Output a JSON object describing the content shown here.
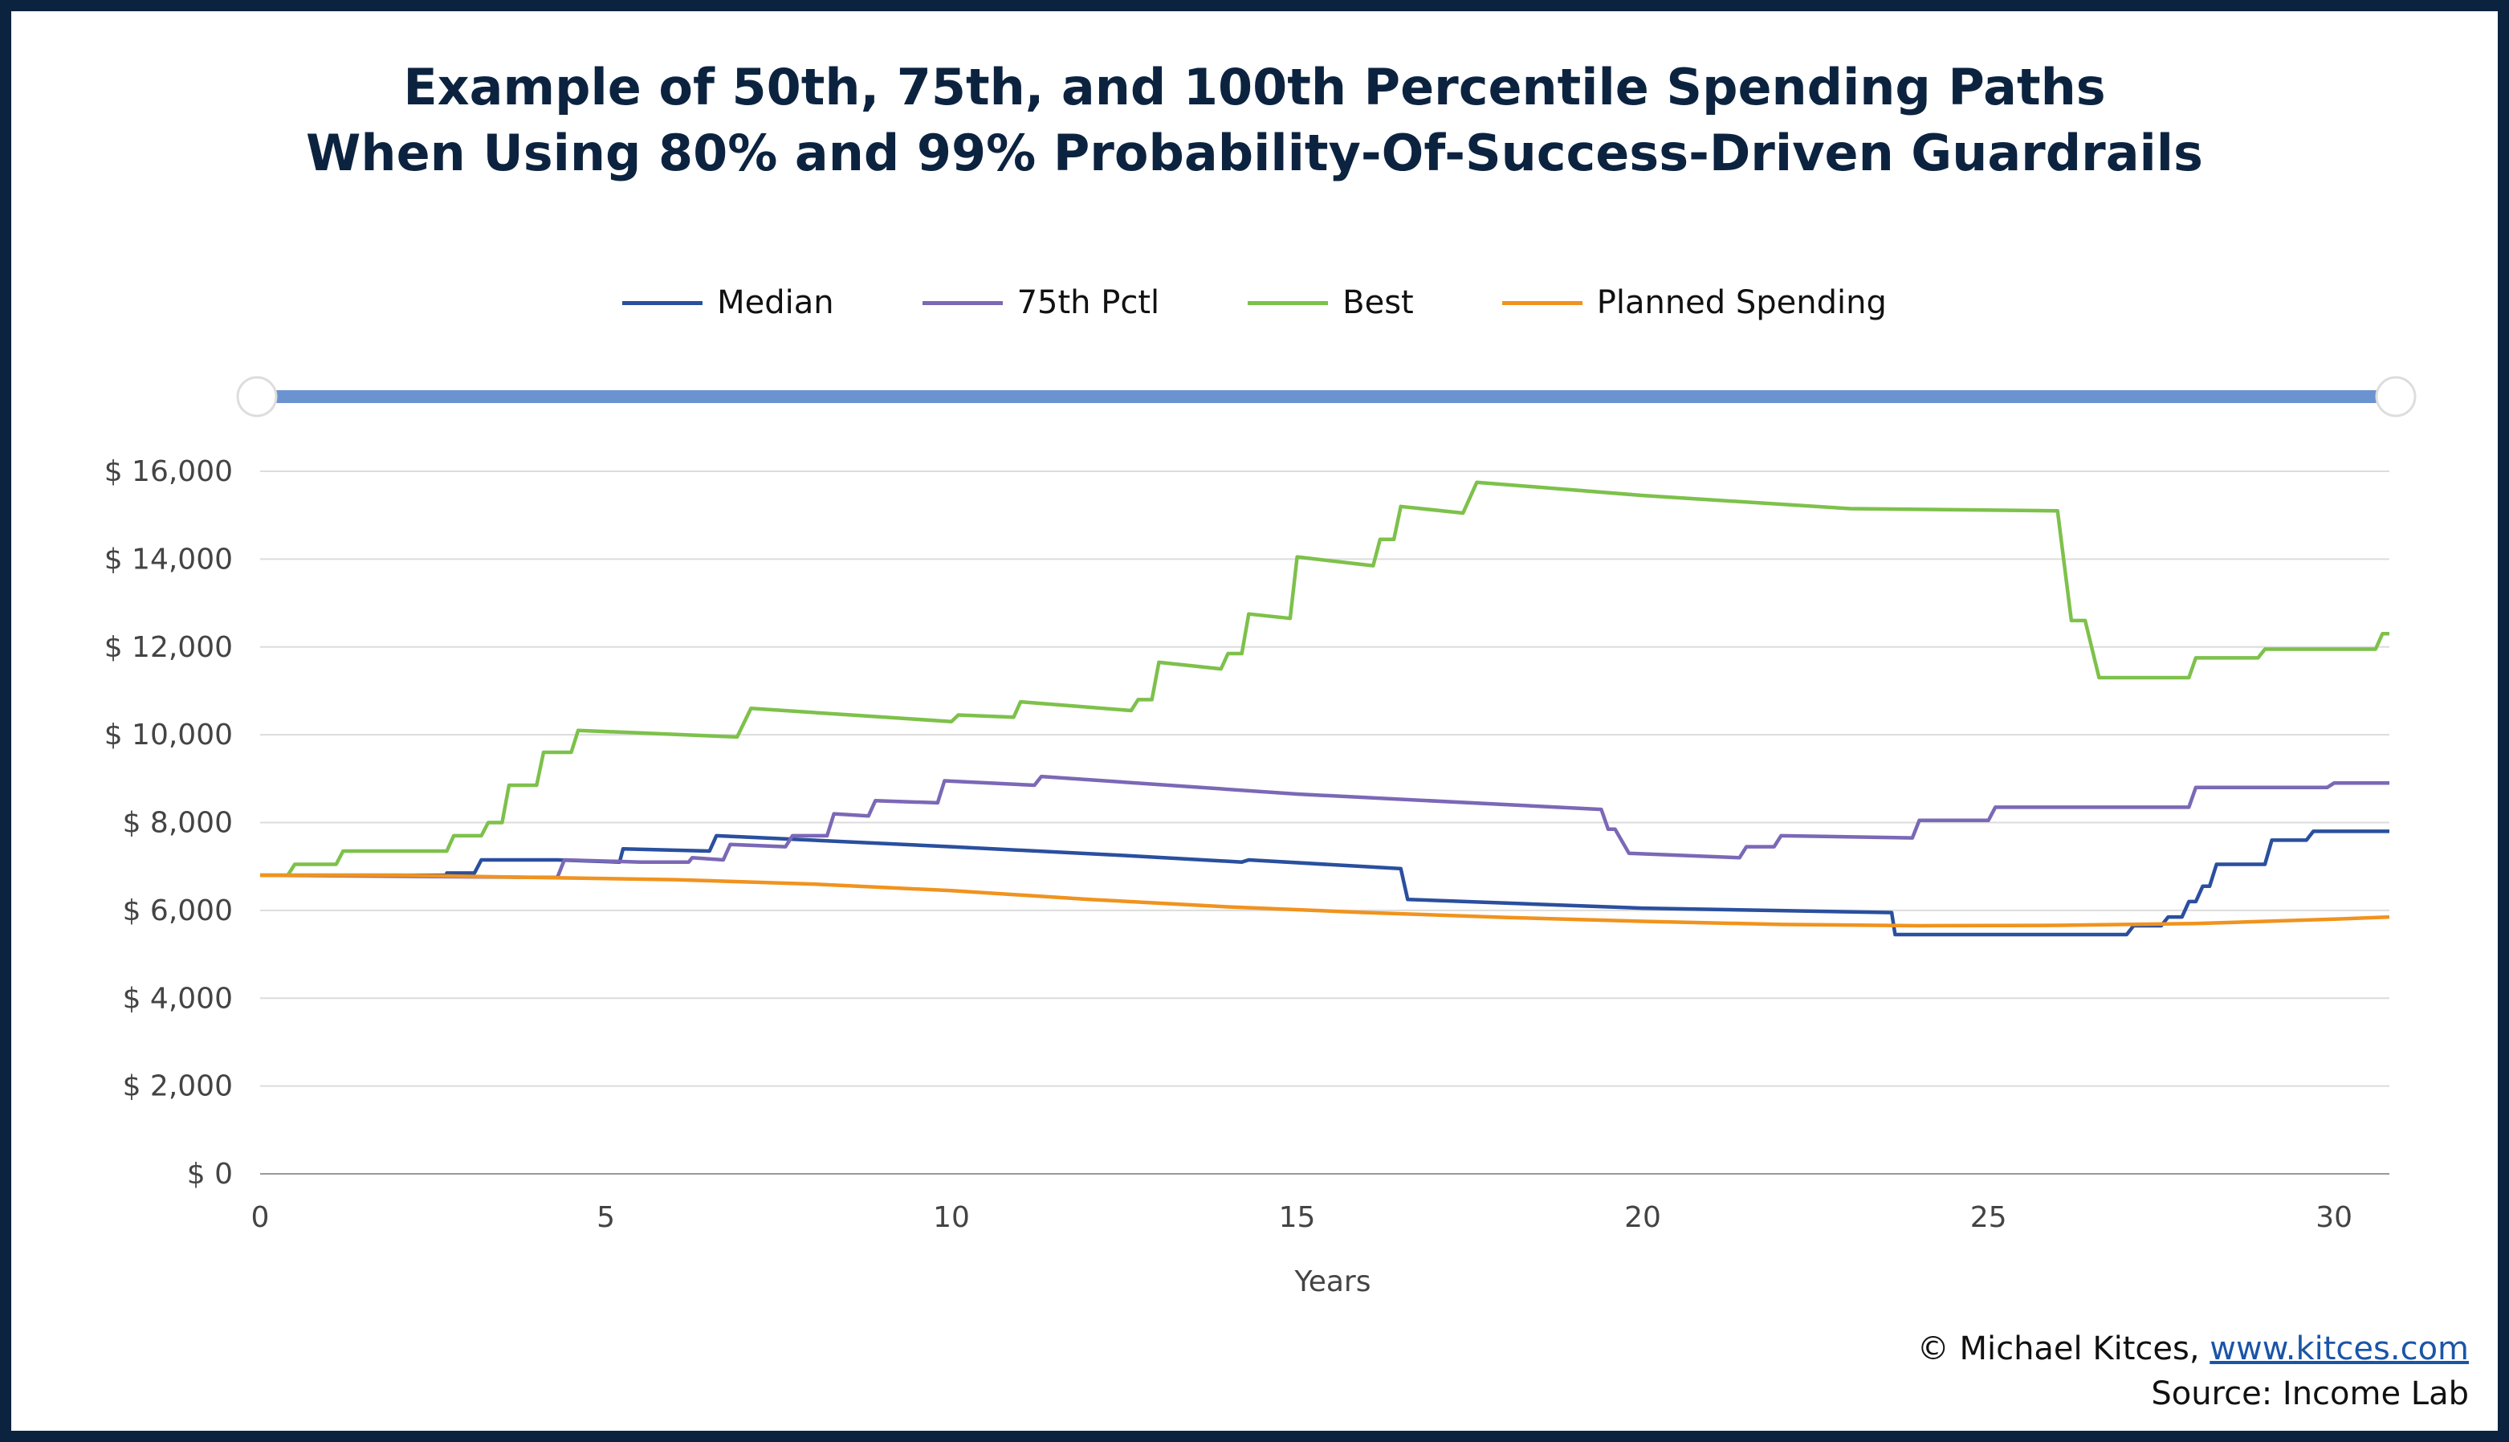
{
  "chart_data": {
    "type": "line",
    "title": "Example of 50th, 75th, and 100th Percentile Spending Paths",
    "subtitle": "When Using 80% and 99% Probability-Of-Success-Driven Guardrails",
    "xlabel": "Years",
    "ylabel": "",
    "xlim": [
      0,
      30.8
    ],
    "ylim": [
      0,
      16000
    ],
    "x_ticks": [
      0,
      5,
      10,
      15,
      20,
      25,
      30
    ],
    "y_ticks": [
      0,
      2000,
      4000,
      6000,
      8000,
      10000,
      12000,
      14000,
      16000
    ],
    "y_tick_labels": [
      "$ 0",
      "$ 2,000",
      "$ 4,000",
      "$ 6,000",
      "$ 8,000",
      "$ 10,000",
      "$ 12,000",
      "$ 14,000",
      "$ 16,000"
    ],
    "legend_position": "top",
    "grid": true,
    "series": [
      {
        "name": "Median",
        "color": "#2a4f9e",
        "points": [
          [
            0,
            6800
          ],
          [
            2.7,
            6800
          ],
          [
            2.7,
            6850
          ],
          [
            3.1,
            6850
          ],
          [
            3.2,
            7150
          ],
          [
            4.3,
            7150
          ],
          [
            5.2,
            7100
          ],
          [
            5.25,
            7400
          ],
          [
            6.5,
            7350
          ],
          [
            6.6,
            7700
          ],
          [
            7.3,
            7650
          ],
          [
            10,
            7450
          ],
          [
            12.5,
            7250
          ],
          [
            14.2,
            7100
          ],
          [
            14.3,
            7150
          ],
          [
            16.5,
            6950
          ],
          [
            16.6,
            6250
          ],
          [
            20,
            6050
          ],
          [
            23.6,
            5950
          ],
          [
            23.65,
            5450
          ],
          [
            27,
            5450
          ],
          [
            27.1,
            5650
          ],
          [
            27.5,
            5650
          ],
          [
            27.6,
            5850
          ],
          [
            27.8,
            5850
          ],
          [
            27.9,
            6200
          ],
          [
            28.0,
            6200
          ],
          [
            28.1,
            6550
          ],
          [
            28.2,
            6550
          ],
          [
            28.3,
            7050
          ],
          [
            29,
            7050
          ],
          [
            29.1,
            7600
          ],
          [
            29.6,
            7600
          ],
          [
            29.7,
            7800
          ],
          [
            30.8,
            7800
          ]
        ]
      },
      {
        "name": "75th Pctl",
        "color": "#7b68b6",
        "points": [
          [
            0,
            6800
          ],
          [
            4.3,
            6750
          ],
          [
            4.4,
            7150
          ],
          [
            5.5,
            7100
          ],
          [
            6.2,
            7100
          ],
          [
            6.25,
            7200
          ],
          [
            6.7,
            7150
          ],
          [
            6.8,
            7500
          ],
          [
            7.6,
            7450
          ],
          [
            7.7,
            7700
          ],
          [
            8.2,
            7700
          ],
          [
            8.3,
            8200
          ],
          [
            8.8,
            8150
          ],
          [
            8.9,
            8500
          ],
          [
            9.8,
            8450
          ],
          [
            9.9,
            8950
          ],
          [
            11.2,
            8850
          ],
          [
            11.3,
            9050
          ],
          [
            15,
            8650
          ],
          [
            19.4,
            8300
          ],
          [
            19.5,
            7850
          ],
          [
            19.6,
            7850
          ],
          [
            19.8,
            7300
          ],
          [
            21.4,
            7200
          ],
          [
            21.5,
            7450
          ],
          [
            21.9,
            7450
          ],
          [
            22,
            7700
          ],
          [
            23.9,
            7650
          ],
          [
            24,
            8050
          ],
          [
            25,
            8050
          ],
          [
            25.1,
            8350
          ],
          [
            27.9,
            8350
          ],
          [
            28,
            8800
          ],
          [
            29.9,
            8800
          ],
          [
            30,
            8900
          ],
          [
            30.8,
            8900
          ]
        ]
      },
      {
        "name": "Best",
        "color": "#7dc14b",
        "points": [
          [
            0,
            6800
          ],
          [
            0.4,
            6800
          ],
          [
            0.5,
            7050
          ],
          [
            1.1,
            7050
          ],
          [
            1.2,
            7350
          ],
          [
            2.7,
            7350
          ],
          [
            2.8,
            7700
          ],
          [
            3.2,
            7700
          ],
          [
            3.3,
            8000
          ],
          [
            3.5,
            8000
          ],
          [
            3.6,
            8850
          ],
          [
            4.0,
            8850
          ],
          [
            4.1,
            9600
          ],
          [
            4.5,
            9600
          ],
          [
            4.6,
            10100
          ],
          [
            6.9,
            9950
          ],
          [
            7.1,
            10600
          ],
          [
            10,
            10300
          ],
          [
            10.1,
            10450
          ],
          [
            10.9,
            10400
          ],
          [
            11,
            10750
          ],
          [
            12.6,
            10550
          ],
          [
            12.7,
            10800
          ],
          [
            12.9,
            10800
          ],
          [
            13,
            11650
          ],
          [
            13.9,
            11500
          ],
          [
            14,
            11850
          ],
          [
            14.2,
            11850
          ],
          [
            14.3,
            12750
          ],
          [
            14.9,
            12650
          ],
          [
            15,
            14050
          ],
          [
            16.1,
            13850
          ],
          [
            16.2,
            14450
          ],
          [
            16.4,
            14450
          ],
          [
            16.5,
            15200
          ],
          [
            17.4,
            15050
          ],
          [
            17.6,
            15750
          ],
          [
            20,
            15450
          ],
          [
            23,
            15150
          ],
          [
            26,
            15100
          ],
          [
            26.2,
            12600
          ],
          [
            26.4,
            12600
          ],
          [
            26.6,
            11300
          ],
          [
            27.9,
            11300
          ],
          [
            28,
            11750
          ],
          [
            28.9,
            11750
          ],
          [
            29,
            11950
          ],
          [
            30.6,
            11950
          ],
          [
            30.7,
            12300
          ],
          [
            30.8,
            12300
          ]
        ]
      },
      {
        "name": "Planned Spending",
        "color": "#f0931e",
        "points": [
          [
            0,
            6800
          ],
          [
            2,
            6800
          ],
          [
            4,
            6750
          ],
          [
            6,
            6700
          ],
          [
            8,
            6600
          ],
          [
            10,
            6450
          ],
          [
            12,
            6250
          ],
          [
            14,
            6080
          ],
          [
            16,
            5950
          ],
          [
            18,
            5840
          ],
          [
            20,
            5750
          ],
          [
            22,
            5680
          ],
          [
            24,
            5650
          ],
          [
            26,
            5660
          ],
          [
            28,
            5700
          ],
          [
            30,
            5800
          ],
          [
            30.8,
            5850
          ]
        ]
      }
    ]
  },
  "credits": {
    "copyright": "© Michael Kitces, ",
    "link": "www.kitces.com",
    "source": "Source: Income Lab"
  }
}
